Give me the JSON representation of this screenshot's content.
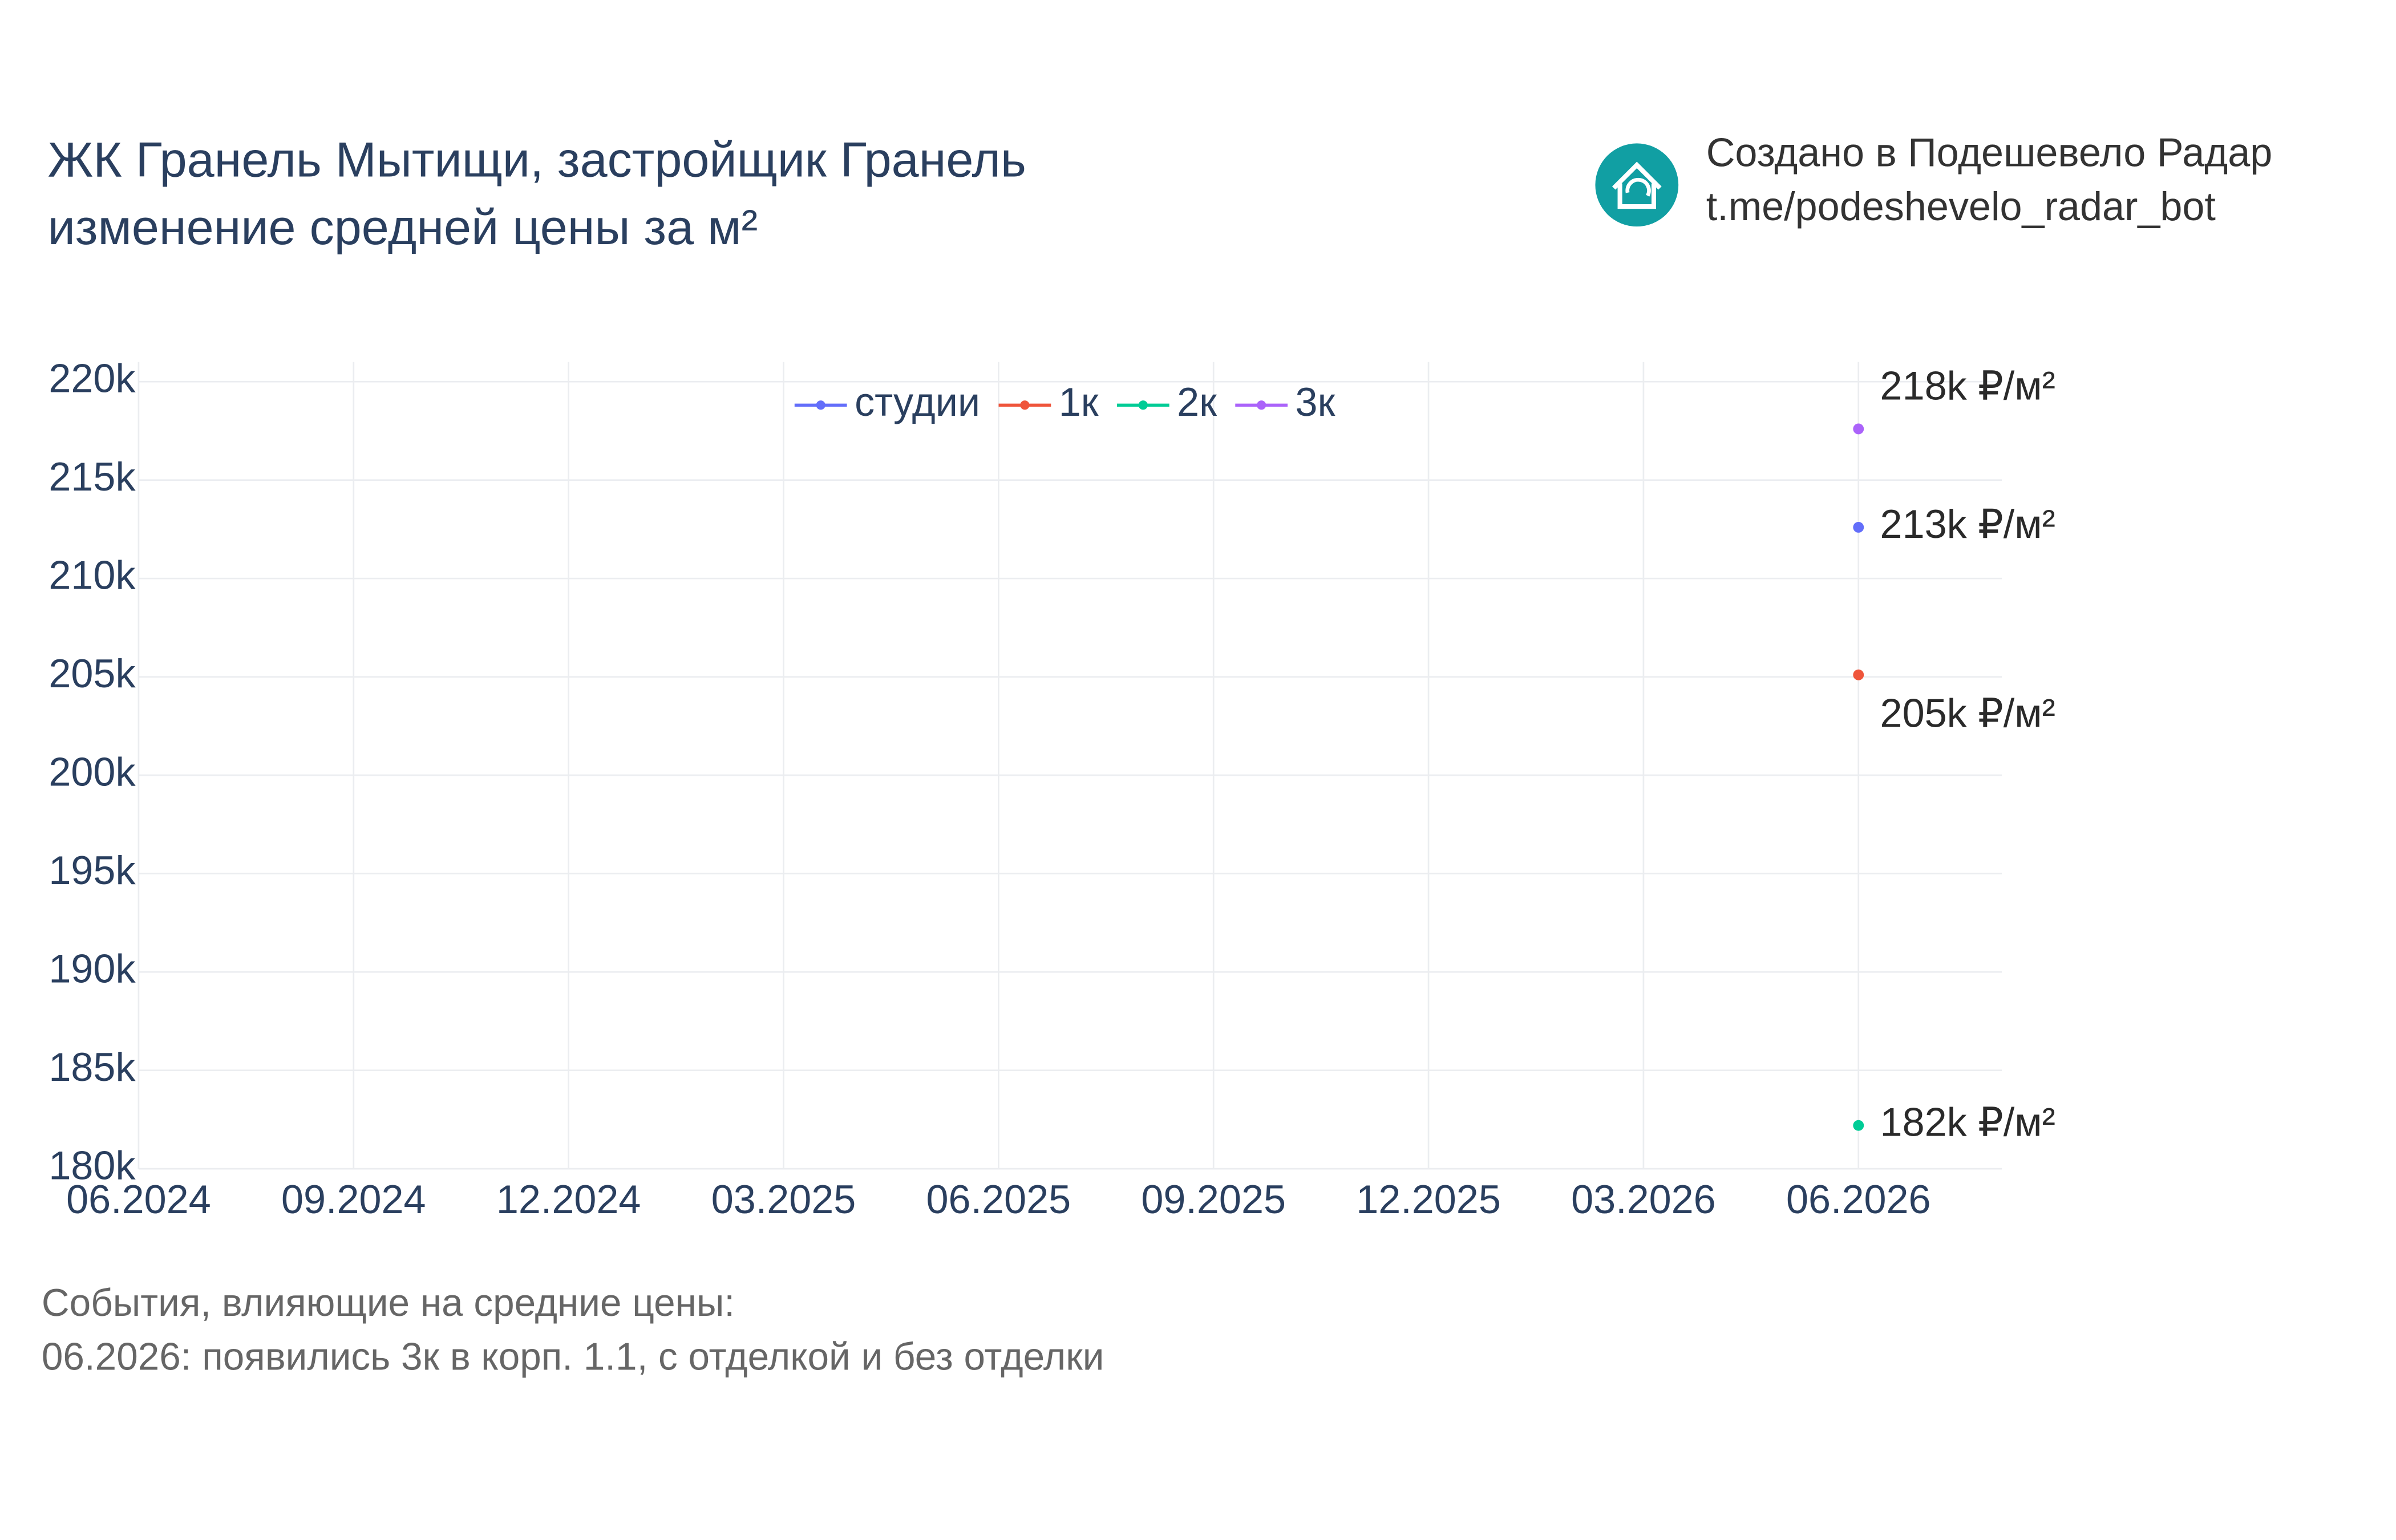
{
  "chart_data": {
    "type": "line",
    "title": "ЖК Гранель Мытищи, застройщик Гранель",
    "subtitle": "изменение средней цены за м²",
    "x": [
      "06.2026"
    ],
    "series": [
      {
        "name": "студии",
        "color": "#636efa",
        "values": [
          212600
        ],
        "value_labels": [
          "213k ₽/м²"
        ]
      },
      {
        "name": "1к",
        "color": "#ef553b",
        "values": [
          205100
        ],
        "value_labels": [
          "205k ₽/м²"
        ]
      },
      {
        "name": "2к",
        "color": "#00cc96",
        "values": [
          182200
        ],
        "value_labels": [
          "182k ₽/м²"
        ]
      },
      {
        "name": "3к",
        "color": "#ab63fa",
        "values": [
          217600
        ],
        "value_labels": [
          "218k ₽/м²"
        ]
      }
    ],
    "xlim": [
      "06.2024",
      "08.2026"
    ],
    "xticks": [
      "06.2024",
      "09.2024",
      "12.2024",
      "03.2025",
      "06.2025",
      "09.2025",
      "12.2025",
      "03.2026",
      "06.2026"
    ],
    "ylim": [
      180000,
      221000
    ],
    "yticks": [
      {
        "value": 180000,
        "label": "180k"
      },
      {
        "value": 185000,
        "label": "185k"
      },
      {
        "value": 190000,
        "label": "190k"
      },
      {
        "value": 195000,
        "label": "195k"
      },
      {
        "value": 200000,
        "label": "200k"
      },
      {
        "value": 205000,
        "label": "205k"
      },
      {
        "value": 210000,
        "label": "210k"
      },
      {
        "value": 215000,
        "label": "215k"
      },
      {
        "value": 220000,
        "label": "220k"
      }
    ],
    "grid": true,
    "legend": "top"
  },
  "watermark": {
    "line1": "Создано в Подешевело Радар",
    "line2": "t.me/podeshevelo_radar_bot"
  },
  "events": {
    "title": "События, влияющие на средние цены:",
    "items": [
      "06.2026: появились 3к в корп. 1.1, с отделкой и без отделки"
    ]
  }
}
